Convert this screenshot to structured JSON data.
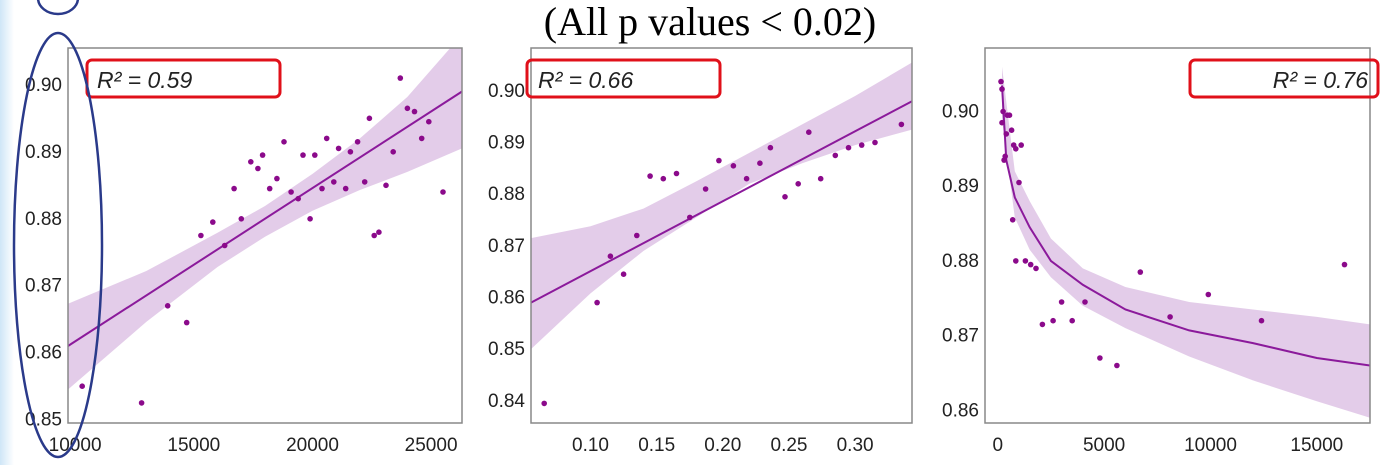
{
  "title": "(All p values < 0.02)",
  "styles": {
    "point_color": "#8b0a8b",
    "line_color": "#8b1a9b",
    "band_color": "#dcbfe3",
    "annotation_border": "#e0101a",
    "ellipse_color": "#2a3a8a",
    "axis_color": "#888888"
  },
  "chart_data": [
    {
      "type": "scatter",
      "annotation": "R² = 0.59",
      "annotation_placement": "top-left",
      "xlim": [
        9700,
        26300
      ],
      "ylim": [
        0.8495,
        0.9055
      ],
      "xticks": [
        10000,
        15000,
        20000,
        25000
      ],
      "xtick_labels": [
        "10000",
        "15000",
        "20000",
        "25000"
      ],
      "yticks": [
        0.85,
        0.86,
        0.87,
        0.88,
        0.89,
        0.9
      ],
      "ytick_labels": [
        "0.85",
        "0.86",
        "0.87",
        "0.88",
        "0.89",
        "0.90"
      ],
      "grid": false,
      "fit": {
        "kind": "linear",
        "x": [
          9700,
          26300
        ],
        "y": [
          0.861,
          0.899
        ]
      },
      "band": {
        "x": [
          9700,
          13000,
          16000,
          18000,
          20000,
          22000,
          24000,
          26300
        ],
        "lower": [
          0.8545,
          0.8646,
          0.8728,
          0.8773,
          0.8812,
          0.8843,
          0.887,
          0.8905
        ],
        "upper": [
          0.8673,
          0.8722,
          0.8779,
          0.8819,
          0.8867,
          0.892,
          0.8982,
          0.9075
        ]
      },
      "points": [
        {
          "x": 10300,
          "y": 0.855
        },
        {
          "x": 12800,
          "y": 0.8525
        },
        {
          "x": 13900,
          "y": 0.867
        },
        {
          "x": 14700,
          "y": 0.8645
        },
        {
          "x": 15300,
          "y": 0.8775
        },
        {
          "x": 15800,
          "y": 0.8795
        },
        {
          "x": 16300,
          "y": 0.876
        },
        {
          "x": 16700,
          "y": 0.8845
        },
        {
          "x": 17000,
          "y": 0.88
        },
        {
          "x": 17400,
          "y": 0.8885
        },
        {
          "x": 17700,
          "y": 0.8875
        },
        {
          "x": 17900,
          "y": 0.8895
        },
        {
          "x": 18200,
          "y": 0.8845
        },
        {
          "x": 18500,
          "y": 0.886
        },
        {
          "x": 18800,
          "y": 0.8915
        },
        {
          "x": 19100,
          "y": 0.884
        },
        {
          "x": 19400,
          "y": 0.883
        },
        {
          "x": 19600,
          "y": 0.8895
        },
        {
          "x": 19900,
          "y": 0.88
        },
        {
          "x": 20100,
          "y": 0.8895
        },
        {
          "x": 20400,
          "y": 0.8845
        },
        {
          "x": 20600,
          "y": 0.892
        },
        {
          "x": 20900,
          "y": 0.8855
        },
        {
          "x": 21100,
          "y": 0.8905
        },
        {
          "x": 21400,
          "y": 0.8845
        },
        {
          "x": 21600,
          "y": 0.89
        },
        {
          "x": 21900,
          "y": 0.8915
        },
        {
          "x": 22200,
          "y": 0.8855
        },
        {
          "x": 22400,
          "y": 0.895
        },
        {
          "x": 22600,
          "y": 0.8775
        },
        {
          "x": 22800,
          "y": 0.878
        },
        {
          "x": 23100,
          "y": 0.885
        },
        {
          "x": 23400,
          "y": 0.89
        },
        {
          "x": 23700,
          "y": 0.901
        },
        {
          "x": 24000,
          "y": 0.8965
        },
        {
          "x": 24300,
          "y": 0.896
        },
        {
          "x": 24600,
          "y": 0.892
        },
        {
          "x": 24900,
          "y": 0.8945
        },
        {
          "x": 25500,
          "y": 0.884
        }
      ]
    },
    {
      "type": "scatter",
      "annotation": "R² = 0.66",
      "annotation_placement": "top-left",
      "xlim": [
        0.055,
        0.343
      ],
      "ylim": [
        0.8357,
        0.9083
      ],
      "xticks": [
        0.1,
        0.15,
        0.2,
        0.25,
        0.3
      ],
      "xtick_labels": [
        "0.10",
        "0.15",
        "0.20",
        "0.25",
        "0.30"
      ],
      "yticks": [
        0.84,
        0.85,
        0.86,
        0.87,
        0.88,
        0.89,
        0.9
      ],
      "ytick_labels": [
        "0.84",
        "0.85",
        "0.86",
        "0.87",
        "0.88",
        "0.89",
        "0.90"
      ],
      "grid": false,
      "fit": {
        "kind": "linear",
        "x": [
          0.055,
          0.343
        ],
        "y": [
          0.859,
          0.898
        ]
      },
      "band": {
        "x": [
          0.055,
          0.1,
          0.14,
          0.18,
          0.22,
          0.26,
          0.3,
          0.343
        ],
        "lower": [
          0.85,
          0.8608,
          0.869,
          0.8755,
          0.882,
          0.886,
          0.8895,
          0.8925
        ],
        "upper": [
          0.8715,
          0.8738,
          0.8772,
          0.8825,
          0.888,
          0.8935,
          0.899,
          0.9055
        ]
      },
      "points": [
        {
          "x": 0.065,
          "y": 0.8395
        },
        {
          "x": 0.105,
          "y": 0.859
        },
        {
          "x": 0.115,
          "y": 0.868
        },
        {
          "x": 0.125,
          "y": 0.8645
        },
        {
          "x": 0.135,
          "y": 0.872
        },
        {
          "x": 0.145,
          "y": 0.8835
        },
        {
          "x": 0.155,
          "y": 0.883
        },
        {
          "x": 0.165,
          "y": 0.884
        },
        {
          "x": 0.175,
          "y": 0.8755
        },
        {
          "x": 0.187,
          "y": 0.881
        },
        {
          "x": 0.197,
          "y": 0.8865
        },
        {
          "x": 0.208,
          "y": 0.8855
        },
        {
          "x": 0.218,
          "y": 0.883
        },
        {
          "x": 0.228,
          "y": 0.886
        },
        {
          "x": 0.236,
          "y": 0.889
        },
        {
          "x": 0.247,
          "y": 0.8795
        },
        {
          "x": 0.257,
          "y": 0.882
        },
        {
          "x": 0.265,
          "y": 0.892
        },
        {
          "x": 0.274,
          "y": 0.883
        },
        {
          "x": 0.285,
          "y": 0.8875
        },
        {
          "x": 0.295,
          "y": 0.889
        },
        {
          "x": 0.305,
          "y": 0.8895
        },
        {
          "x": 0.315,
          "y": 0.89
        },
        {
          "x": 0.335,
          "y": 0.8935
        }
      ]
    },
    {
      "type": "scatter",
      "annotation": "R² = 0.76",
      "annotation_placement": "top-right",
      "xlim": [
        -600,
        17500
      ],
      "ylim": [
        0.8583,
        0.9085
      ],
      "xticks": [
        0,
        5000,
        10000,
        15000
      ],
      "xtick_labels": [
        "0",
        "5000",
        "10000",
        "15000"
      ],
      "yticks": [
        0.86,
        0.87,
        0.88,
        0.89,
        0.9
      ],
      "ytick_labels": [
        "0.86",
        "0.87",
        "0.88",
        "0.89",
        "0.90"
      ],
      "grid": false,
      "fit": {
        "kind": "log",
        "x": [
          200,
          400,
          800,
          1500,
          2500,
          4000,
          6000,
          9000,
          12000,
          15000,
          17500
        ],
        "y": [
          0.9035,
          0.8935,
          0.8885,
          0.8845,
          0.88,
          0.8768,
          0.8735,
          0.8707,
          0.869,
          0.867,
          0.866
        ]
      },
      "band": {
        "x": [
          200,
          800,
          1500,
          2500,
          4000,
          6000,
          9000,
          12000,
          15000,
          17500
        ],
        "lower": [
          0.899,
          0.8858,
          0.8815,
          0.8778,
          0.874,
          0.871,
          0.8672,
          0.864,
          0.8612,
          0.859
        ],
        "upper": [
          0.906,
          0.892,
          0.888,
          0.883,
          0.879,
          0.8765,
          0.8745,
          0.8735,
          0.8725,
          0.8715
        ]
      },
      "points": [
        {
          "x": 150,
          "y": 0.904
        },
        {
          "x": 200,
          "y": 0.903
        },
        {
          "x": 250,
          "y": 0.9
        },
        {
          "x": 200,
          "y": 0.8985
        },
        {
          "x": 300,
          "y": 0.8935
        },
        {
          "x": 350,
          "y": 0.894
        },
        {
          "x": 400,
          "y": 0.897
        },
        {
          "x": 450,
          "y": 0.8995
        },
        {
          "x": 550,
          "y": 0.8995
        },
        {
          "x": 650,
          "y": 0.8975
        },
        {
          "x": 750,
          "y": 0.8955
        },
        {
          "x": 850,
          "y": 0.895
        },
        {
          "x": 700,
          "y": 0.8855
        },
        {
          "x": 1000,
          "y": 0.8905
        },
        {
          "x": 1100,
          "y": 0.8955
        },
        {
          "x": 850,
          "y": 0.88
        },
        {
          "x": 1300,
          "y": 0.88
        },
        {
          "x": 1550,
          "y": 0.8795
        },
        {
          "x": 1800,
          "y": 0.879
        },
        {
          "x": 2100,
          "y": 0.8715
        },
        {
          "x": 2600,
          "y": 0.872
        },
        {
          "x": 3000,
          "y": 0.8745
        },
        {
          "x": 3500,
          "y": 0.872
        },
        {
          "x": 4100,
          "y": 0.8745
        },
        {
          "x": 4800,
          "y": 0.867
        },
        {
          "x": 5600,
          "y": 0.866
        },
        {
          "x": 6700,
          "y": 0.8785
        },
        {
          "x": 8100,
          "y": 0.8725
        },
        {
          "x": 9900,
          "y": 0.8755
        },
        {
          "x": 12400,
          "y": 0.872
        },
        {
          "x": 16300,
          "y": 0.8795
        }
      ]
    }
  ]
}
